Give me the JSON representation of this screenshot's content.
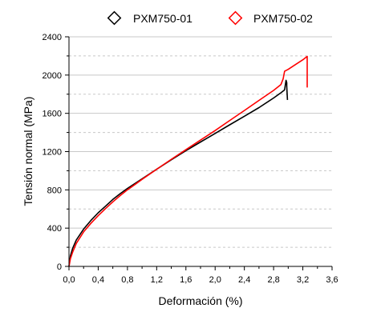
{
  "chart_data": {
    "type": "line",
    "title": "",
    "xlabel": "Deformación (%)",
    "ylabel": "Tensión normal (MPa)",
    "xlim": [
      0,
      3.6
    ],
    "ylim": [
      0,
      2400
    ],
    "xticks": [
      "0,0",
      "0,4",
      "0,8",
      "1,2",
      "1,6",
      "2,0",
      "2,4",
      "2,8",
      "3,2",
      "3,6"
    ],
    "yticks": [
      "0",
      "400",
      "800",
      "1200",
      "1600",
      "2000",
      "2400"
    ],
    "grid": true,
    "legend_position": "top",
    "series": [
      {
        "name": "PXM750-01",
        "color": "#000000",
        "marker": "diamond-outline",
        "x": [
          0,
          0.02,
          0.05,
          0.1,
          0.2,
          0.3,
          0.4,
          0.5,
          0.6,
          0.7,
          0.8,
          0.9,
          1.0,
          1.2,
          1.4,
          1.6,
          1.8,
          2.0,
          2.2,
          2.4,
          2.6,
          2.8,
          2.9,
          2.95,
          2.97,
          2.98,
          2.98,
          2.99
        ],
        "y": [
          0,
          110,
          190,
          275,
          390,
          480,
          560,
          630,
          700,
          760,
          815,
          865,
          915,
          1015,
          1115,
          1210,
          1300,
          1390,
          1480,
          1570,
          1660,
          1760,
          1815,
          1845,
          1945,
          1920,
          1880,
          1740
        ]
      },
      {
        "name": "PXM750-02",
        "color": "#ff0000",
        "marker": "diamond-outline",
        "x": [
          0,
          0.02,
          0.05,
          0.1,
          0.2,
          0.3,
          0.4,
          0.5,
          0.6,
          0.7,
          0.8,
          0.9,
          1.0,
          1.2,
          1.4,
          1.6,
          1.8,
          2.0,
          2.2,
          2.4,
          2.6,
          2.8,
          2.9,
          2.93,
          2.95,
          3.0,
          3.1,
          3.2,
          3.26,
          3.26
        ],
        "y": [
          0,
          80,
          150,
          240,
          360,
          450,
          530,
          605,
          675,
          740,
          800,
          855,
          910,
          1015,
          1120,
          1220,
          1320,
          1420,
          1525,
          1630,
          1735,
          1840,
          1900,
          1960,
          2040,
          2060,
          2110,
          2160,
          2195,
          1870
        ]
      }
    ]
  }
}
